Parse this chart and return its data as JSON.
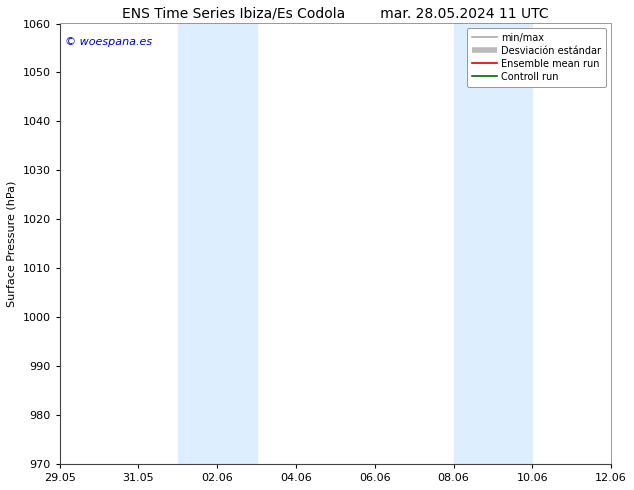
{
  "title_left": "ENS Time Series Ibiza/Es Codola",
  "title_right": "mar. 28.05.2024 11 UTC",
  "ylabel": "Surface Pressure (hPa)",
  "ylim": [
    970,
    1060
  ],
  "yticks": [
    970,
    980,
    990,
    1000,
    1010,
    1020,
    1030,
    1040,
    1050,
    1060
  ],
  "x_start_days": 0,
  "x_end_days": 14,
  "xtick_labels": [
    "29.05",
    "31.05",
    "02.06",
    "04.06",
    "06.06",
    "08.06",
    "10.06",
    "12.06"
  ],
  "xtick_positions": [
    0,
    2,
    4,
    6,
    8,
    10,
    12,
    14
  ],
  "shaded_bands": [
    {
      "x_start": 3,
      "x_end": 5
    },
    {
      "x_start": 10,
      "x_end": 12
    }
  ],
  "shade_color": "#ddeeff",
  "background_color": "#ffffff",
  "watermark": "© woespana.es",
  "watermark_color": "#0000cc",
  "legend_labels": [
    "min/max",
    "Desviación estándar",
    "Ensemble mean run",
    "Controll run"
  ],
  "legend_line_colors": [
    "#aaaaaa",
    "#cccccc",
    "#dd0000",
    "#006600"
  ],
  "title_fontsize": 10,
  "axis_fontsize": 8,
  "tick_fontsize": 8,
  "legend_fontsize": 7
}
